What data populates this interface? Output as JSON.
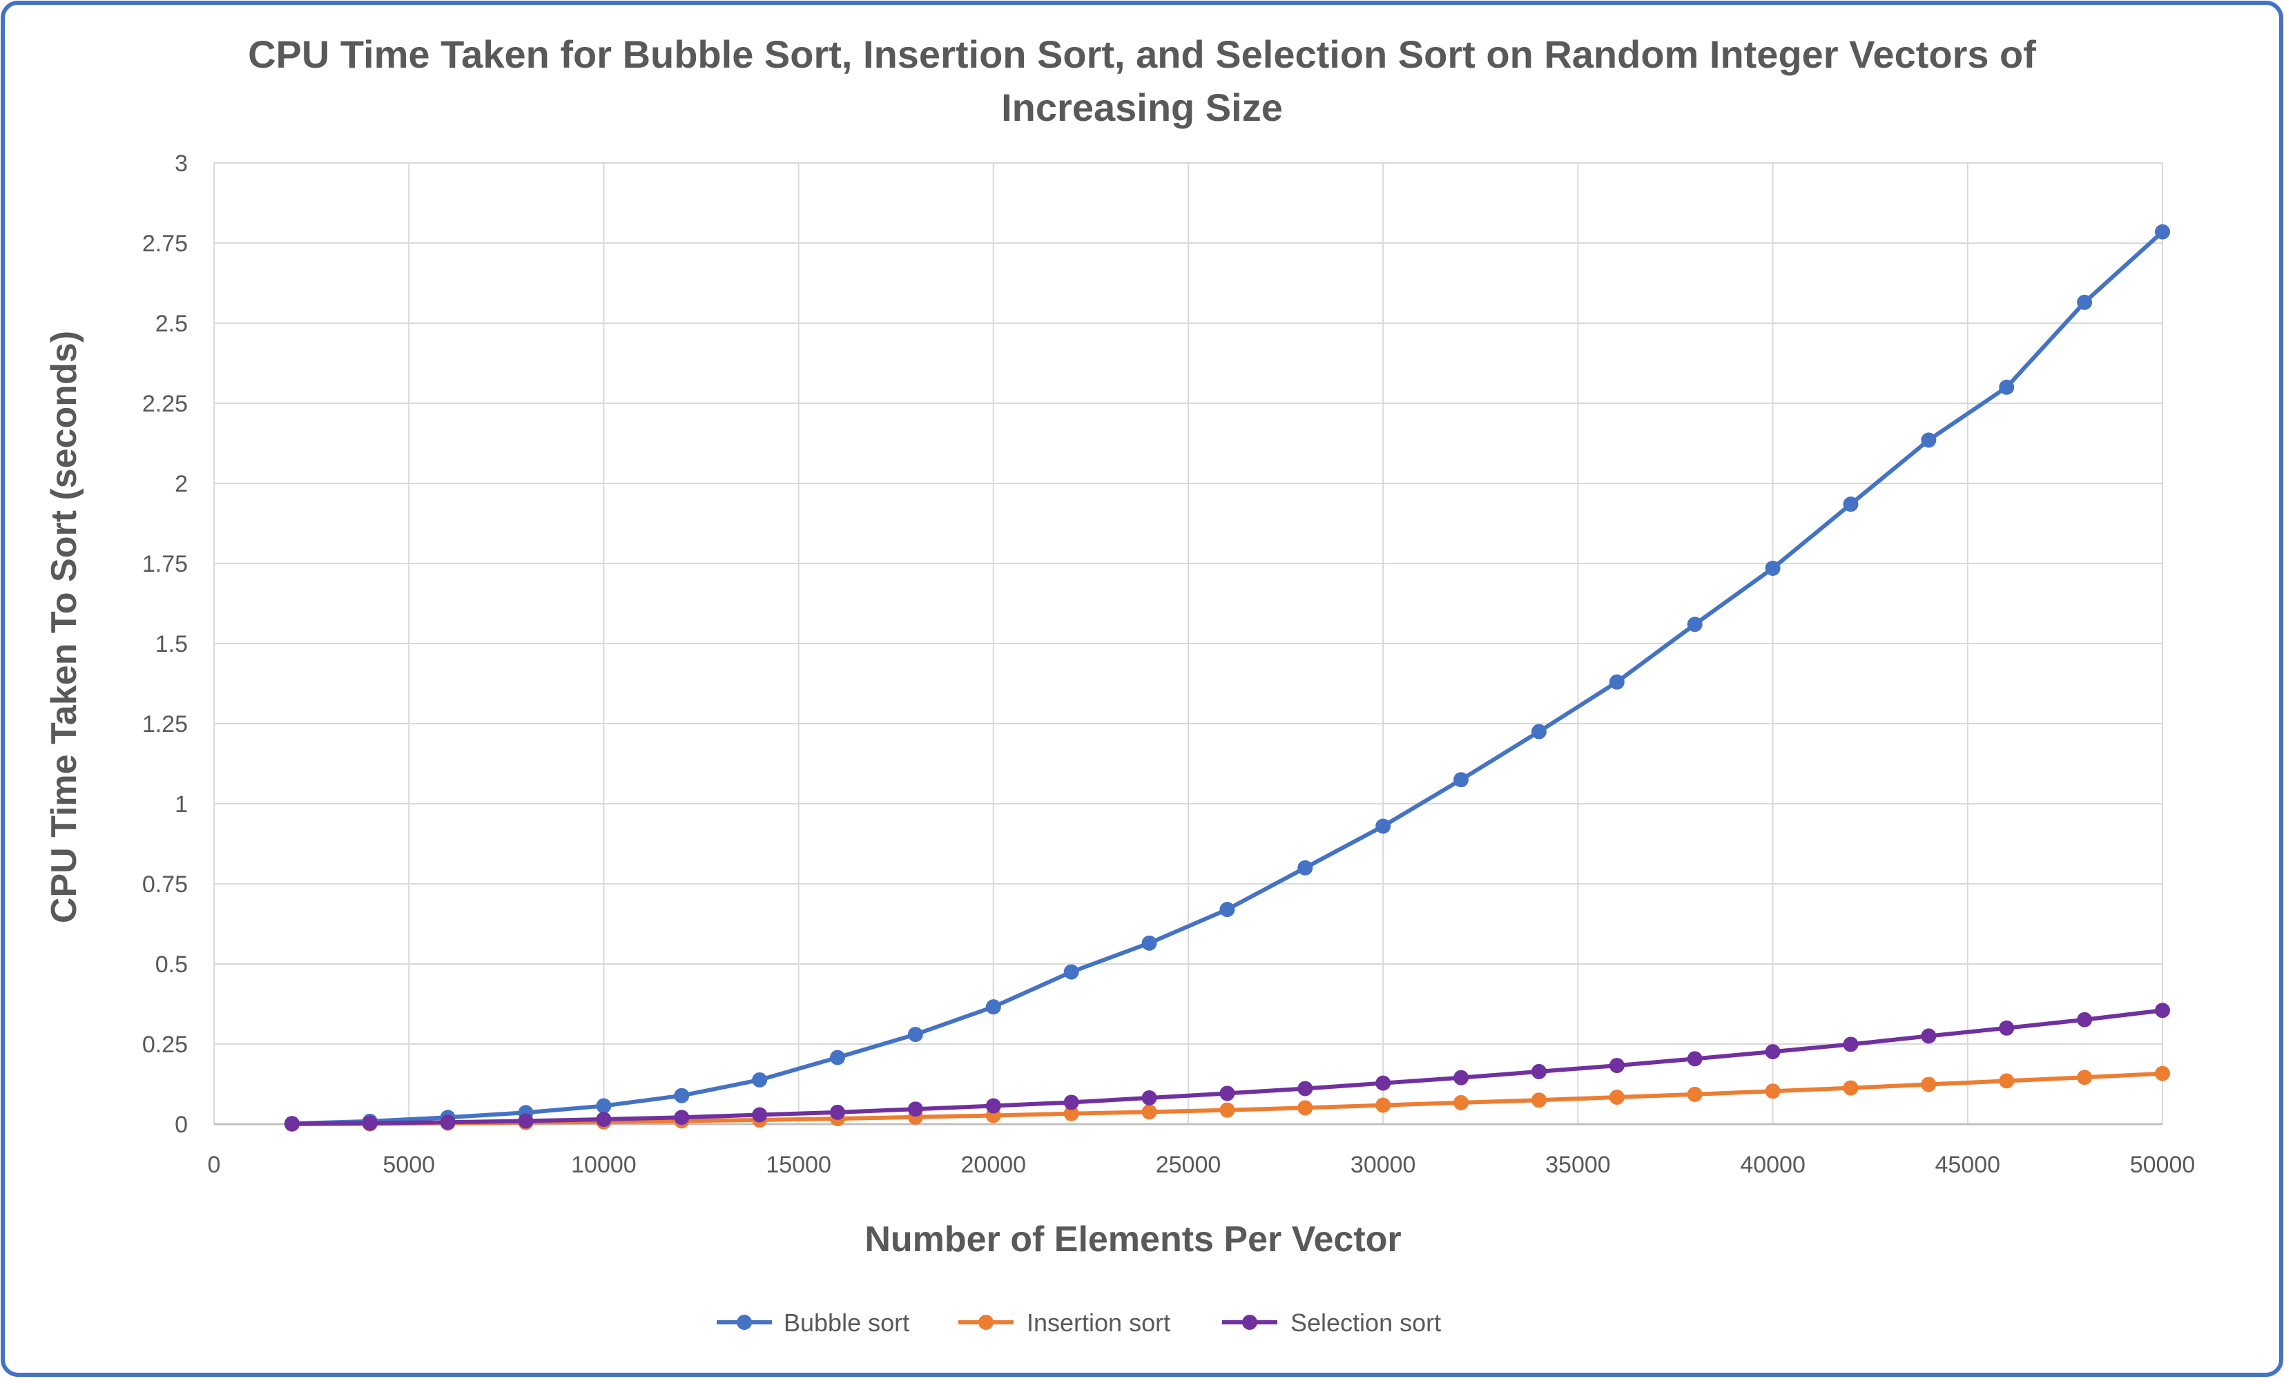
{
  "chart_data": {
    "type": "line",
    "title_lines": [
      "CPU Time Taken for Bubble Sort, Insertion Sort, and Selection Sort on Random Integer Vectors of",
      "Increasing Size"
    ],
    "xlabel": "Number of Elements Per Vector",
    "ylabel": "CPU Time Taken To Sort (seconds)",
    "xlim": [
      0,
      50000
    ],
    "ylim": [
      0,
      3
    ],
    "x_ticks": [
      0,
      5000,
      10000,
      15000,
      20000,
      25000,
      30000,
      35000,
      40000,
      45000,
      50000
    ],
    "y_ticks": [
      0,
      0.25,
      0.5,
      0.75,
      1,
      1.25,
      1.5,
      1.75,
      2,
      2.25,
      2.5,
      2.75,
      3
    ],
    "grid": true,
    "legend_position": "bottom",
    "x": [
      2000,
      4000,
      6000,
      8000,
      10000,
      12000,
      14000,
      16000,
      18000,
      20000,
      22000,
      24000,
      26000,
      28000,
      30000,
      32000,
      34000,
      36000,
      38000,
      40000,
      42000,
      44000,
      46000,
      48000,
      50000
    ],
    "series": [
      {
        "name": "Bubble sort",
        "color": "#4472C4",
        "values": [
          0.002,
          0.009,
          0.021,
          0.036,
          0.057,
          0.089,
          0.138,
          0.208,
          0.28,
          0.366,
          0.475,
          0.565,
          0.67,
          0.8,
          0.93,
          1.075,
          1.225,
          1.38,
          1.56,
          1.735,
          1.935,
          2.135,
          2.3,
          2.565,
          2.785
        ]
      },
      {
        "name": "Insertion sort",
        "color": "#ED7D31",
        "values": [
          0.0,
          0.001,
          0.003,
          0.005,
          0.007,
          0.01,
          0.013,
          0.017,
          0.022,
          0.027,
          0.033,
          0.038,
          0.044,
          0.051,
          0.059,
          0.067,
          0.075,
          0.084,
          0.093,
          0.103,
          0.113,
          0.124,
          0.135,
          0.146,
          0.158
        ]
      },
      {
        "name": "Selection sort",
        "color": "#7030A0",
        "values": [
          0.001,
          0.003,
          0.006,
          0.01,
          0.015,
          0.021,
          0.029,
          0.037,
          0.047,
          0.057,
          0.068,
          0.082,
          0.096,
          0.111,
          0.128,
          0.145,
          0.164,
          0.183,
          0.204,
          0.226,
          0.249,
          0.275,
          0.3,
          0.326,
          0.355
        ]
      }
    ],
    "frame_color": "#4472C4",
    "grid_color": "#D9D9D9"
  }
}
